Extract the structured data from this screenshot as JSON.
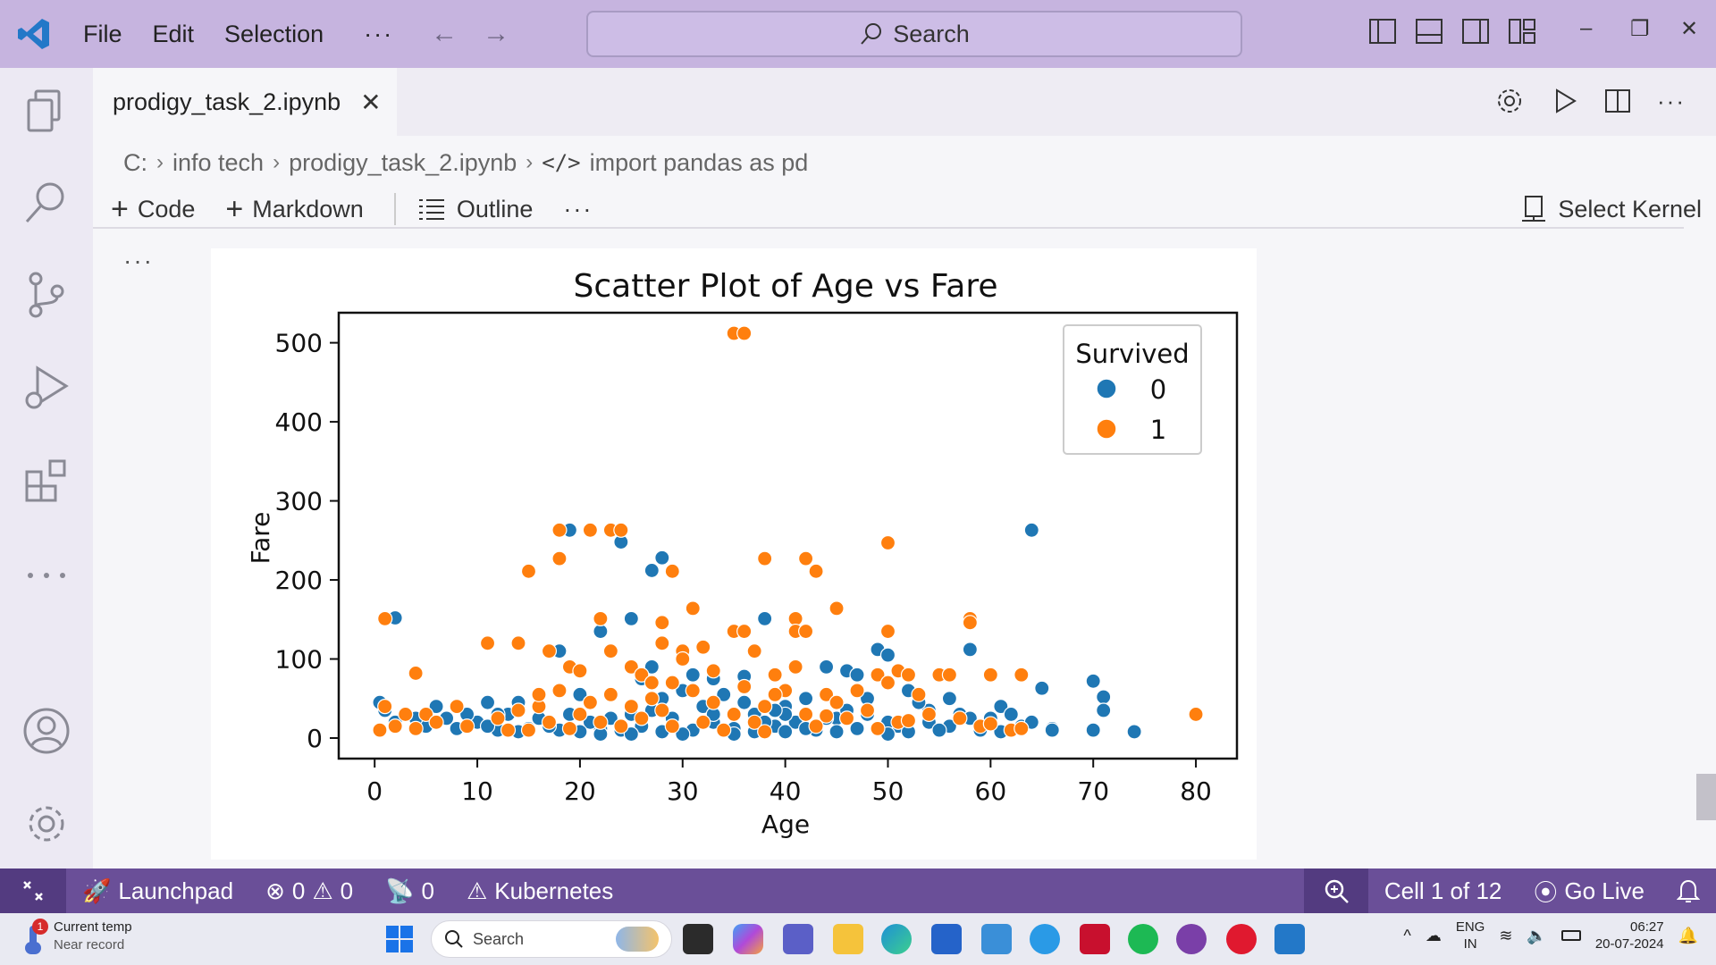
{
  "titlebar": {
    "menus": [
      "File",
      "Edit",
      "Selection"
    ],
    "more": "···",
    "search_label": "Search",
    "window_controls": [
      "–",
      "❐",
      "✕"
    ]
  },
  "tab": {
    "filename": "prodigy_task_2.ipynb",
    "close": "✕"
  },
  "breadcrumb": [
    "C:",
    "info tech",
    "prodigy_task_2.ipynb",
    "import pandas as pd"
  ],
  "toolbar": {
    "code_label": "Code",
    "markdown_label": "Markdown",
    "outline_label": "Outline",
    "more": "···",
    "kernel_label": "Select Kernel"
  },
  "cell": {
    "more": "···"
  },
  "chart_data": {
    "type": "scatter",
    "title": "Scatter Plot of Age vs Fare",
    "xlabel": "Age",
    "ylabel": "Fare",
    "xlim": [
      -3.5,
      84
    ],
    "ylim": [
      -26,
      538
    ],
    "xticks": [
      0,
      10,
      20,
      30,
      40,
      50,
      60,
      70,
      80
    ],
    "yticks": [
      0,
      100,
      200,
      300,
      400,
      500
    ],
    "grid": false,
    "legend": {
      "title": "Survived",
      "placement": "top-right"
    },
    "series": [
      {
        "name": "0",
        "color": "#1f77b4",
        "points": [
          [
            2,
            152
          ],
          [
            19,
            263
          ],
          [
            24,
            248
          ],
          [
            27,
            212
          ],
          [
            28,
            228
          ],
          [
            25,
            151
          ],
          [
            38,
            151
          ],
          [
            22,
            135
          ],
          [
            18,
            110
          ],
          [
            20,
            55
          ],
          [
            27,
            90
          ],
          [
            30,
            60
          ],
          [
            33,
            75
          ],
          [
            36,
            78
          ],
          [
            40,
            40
          ],
          [
            42,
            50
          ],
          [
            44,
            90
          ],
          [
            46,
            85
          ],
          [
            47,
            80
          ],
          [
            49,
            112
          ],
          [
            50,
            105
          ],
          [
            52,
            60
          ],
          [
            56,
            50
          ],
          [
            58,
            112
          ],
          [
            61,
            40
          ],
          [
            64,
            263
          ],
          [
            65,
            63
          ],
          [
            70,
            72
          ],
          [
            71,
            52
          ],
          [
            71,
            35
          ],
          [
            74,
            8
          ],
          [
            70,
            10
          ],
          [
            66,
            12
          ],
          [
            63,
            15
          ],
          [
            60,
            25
          ],
          [
            57,
            30
          ],
          [
            54,
            20
          ],
          [
            51,
            15
          ],
          [
            48,
            30
          ],
          [
            45,
            25
          ],
          [
            43,
            10
          ],
          [
            41,
            20
          ],
          [
            39,
            15
          ],
          [
            37,
            30
          ],
          [
            35,
            12
          ],
          [
            33,
            20
          ],
          [
            31,
            10
          ],
          [
            29,
            25
          ],
          [
            28,
            8
          ],
          [
            27,
            35
          ],
          [
            26,
            15
          ],
          [
            25,
            30
          ],
          [
            24,
            10
          ],
          [
            23,
            25
          ],
          [
            22,
            12
          ],
          [
            21,
            20
          ],
          [
            20,
            8
          ],
          [
            19,
            30
          ],
          [
            18,
            10
          ],
          [
            17,
            15
          ],
          [
            16,
            25
          ],
          [
            15,
            12
          ],
          [
            14,
            8
          ],
          [
            13,
            30
          ],
          [
            12,
            10
          ],
          [
            11,
            45
          ],
          [
            10,
            20
          ],
          [
            9,
            30
          ],
          [
            8,
            12
          ],
          [
            7,
            25
          ],
          [
            6,
            40
          ],
          [
            5,
            15
          ],
          [
            4,
            25
          ],
          [
            3,
            30
          ],
          [
            2,
            20
          ],
          [
            1,
            35
          ],
          [
            0.5,
            45
          ],
          [
            11,
            15
          ],
          [
            12,
            30
          ],
          [
            14,
            45
          ],
          [
            26,
            75
          ],
          [
            28,
            50
          ],
          [
            29,
            70
          ],
          [
            31,
            80
          ],
          [
            32,
            40
          ],
          [
            34,
            55
          ],
          [
            36,
            45
          ],
          [
            38,
            20
          ],
          [
            40,
            30
          ],
          [
            42,
            12
          ],
          [
            44,
            25
          ],
          [
            46,
            35
          ],
          [
            48,
            50
          ],
          [
            50,
            20
          ],
          [
            52,
            8
          ],
          [
            54,
            35
          ],
          [
            56,
            15
          ],
          [
            58,
            25
          ],
          [
            59,
            10
          ],
          [
            61,
            8
          ],
          [
            62,
            30
          ],
          [
            64,
            20
          ],
          [
            66,
            10
          ],
          [
            40,
            8
          ],
          [
            45,
            8
          ],
          [
            50,
            5
          ],
          [
            55,
            10
          ],
          [
            35,
            5
          ],
          [
            30,
            5
          ],
          [
            25,
            5
          ],
          [
            22,
            5
          ],
          [
            37,
            8
          ],
          [
            33,
            30
          ],
          [
            39,
            35
          ],
          [
            47,
            12
          ],
          [
            53,
            45
          ]
        ]
      },
      {
        "name": "1",
        "color": "#ff7f0e",
        "points": [
          [
            35,
            512
          ],
          [
            36,
            512
          ],
          [
            1,
            151
          ],
          [
            18,
            263
          ],
          [
            21,
            263
          ],
          [
            23,
            263
          ],
          [
            24,
            263
          ],
          [
            18,
            227
          ],
          [
            15,
            211
          ],
          [
            29,
            211
          ],
          [
            38,
            227
          ],
          [
            42,
            227
          ],
          [
            43,
            211
          ],
          [
            50,
            247
          ],
          [
            31,
            164
          ],
          [
            45,
            164
          ],
          [
            22,
            151
          ],
          [
            28,
            146
          ],
          [
            41,
            151
          ],
          [
            58,
            151
          ],
          [
            58,
            146
          ],
          [
            35,
            135
          ],
          [
            36,
            135
          ],
          [
            41,
            135
          ],
          [
            42,
            135
          ],
          [
            50,
            135
          ],
          [
            28,
            120
          ],
          [
            11,
            120
          ],
          [
            14,
            120
          ],
          [
            30,
            110
          ],
          [
            32,
            115
          ],
          [
            17,
            110
          ],
          [
            19,
            90
          ],
          [
            20,
            85
          ],
          [
            23,
            110
          ],
          [
            25,
            90
          ],
          [
            26,
            80
          ],
          [
            29,
            70
          ],
          [
            30,
            100
          ],
          [
            37,
            110
          ],
          [
            39,
            80
          ],
          [
            40,
            60
          ],
          [
            41,
            90
          ],
          [
            44,
            55
          ],
          [
            45,
            45
          ],
          [
            47,
            60
          ],
          [
            49,
            80
          ],
          [
            50,
            70
          ],
          [
            51,
            85
          ],
          [
            52,
            80
          ],
          [
            53,
            55
          ],
          [
            55,
            80
          ],
          [
            56,
            80
          ],
          [
            60,
            80
          ],
          [
            63,
            80
          ],
          [
            80,
            30
          ],
          [
            4,
            82
          ],
          [
            3,
            30
          ],
          [
            2,
            15
          ],
          [
            1,
            40
          ],
          [
            0.5,
            10
          ],
          [
            4,
            12
          ],
          [
            5,
            30
          ],
          [
            6,
            20
          ],
          [
            8,
            40
          ],
          [
            9,
            15
          ],
          [
            12,
            25
          ],
          [
            13,
            10
          ],
          [
            14,
            35
          ],
          [
            16,
            40
          ],
          [
            17,
            20
          ],
          [
            18,
            60
          ],
          [
            19,
            12
          ],
          [
            20,
            30
          ],
          [
            21,
            45
          ],
          [
            22,
            20
          ],
          [
            23,
            55
          ],
          [
            24,
            15
          ],
          [
            25,
            40
          ],
          [
            26,
            25
          ],
          [
            27,
            50
          ],
          [
            28,
            35
          ],
          [
            29,
            15
          ],
          [
            31,
            60
          ],
          [
            32,
            20
          ],
          [
            33,
            45
          ],
          [
            34,
            10
          ],
          [
            35,
            30
          ],
          [
            36,
            65
          ],
          [
            37,
            20
          ],
          [
            38,
            40
          ],
          [
            39,
            55
          ],
          [
            42,
            30
          ],
          [
            43,
            15
          ],
          [
            46,
            25
          ],
          [
            48,
            35
          ],
          [
            49,
            12
          ],
          [
            51,
            20
          ],
          [
            54,
            30
          ],
          [
            57,
            25
          ],
          [
            59,
            15
          ],
          [
            62,
            10
          ],
          [
            63,
            12
          ],
          [
            15,
            10
          ],
          [
            16,
            55
          ],
          [
            27,
            70
          ],
          [
            33,
            85
          ],
          [
            44,
            28
          ],
          [
            52,
            22
          ],
          [
            60,
            18
          ],
          [
            38,
            8
          ]
        ]
      }
    ]
  },
  "statusbar": {
    "launchpad_label": "Launchpad",
    "errors": "0",
    "warnings": "0",
    "ports": "0",
    "kubernetes_label": "Kubernetes",
    "cell_position": "Cell 1 of 12",
    "golive_label": "Go Live"
  },
  "taskbar": {
    "weather_badge": "1",
    "weather_title": "Current temp",
    "weather_sub": "Near record",
    "search_label": "Search",
    "lang_line1": "ENG",
    "lang_line2": "IN",
    "time": "06:27",
    "date": "20-07-2024"
  }
}
